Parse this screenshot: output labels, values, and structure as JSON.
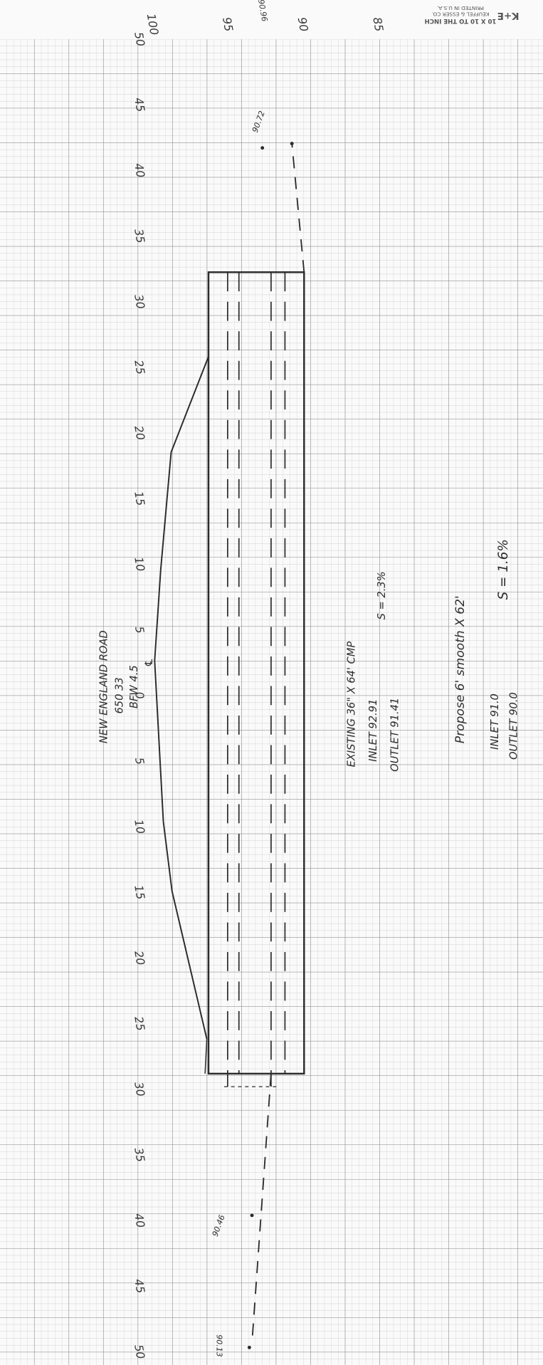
{
  "header": {
    "brand": "K+E",
    "line1": "10 X 10 TO THE INCH",
    "line2": "KEUFFEL & ESSER CO.",
    "line3": "PRINTED IN U.S.A."
  },
  "elevation_labels": [
    100,
    95,
    90,
    85
  ],
  "elevation_note": "90.96",
  "station_labels": [
    50,
    45,
    40,
    35,
    30,
    25,
    20,
    15,
    10,
    5,
    0,
    5,
    10,
    15,
    20,
    25,
    30,
    35,
    40,
    45,
    50
  ],
  "site": {
    "road": "NEW ENGLAND ROAD",
    "number": "650 33",
    "bfw": "BFW 4.5",
    "centerline": "℄"
  },
  "existing": {
    "title": "EXISTING 36\" X 64' CMP",
    "inlet": "INLET 92.91",
    "outlet": "OUTLET 91.41",
    "slope": "S = 2.3%"
  },
  "proposed": {
    "title": "Propose 6' smooth X 62'",
    "inlet": "INLET 91.0",
    "outlet": "OUTLET 90.0",
    "slope": "S = 1.6%"
  },
  "spot_elevations": {
    "upstream": "90.72",
    "downstream_1": "90.46",
    "downstream_2": "90.13"
  }
}
